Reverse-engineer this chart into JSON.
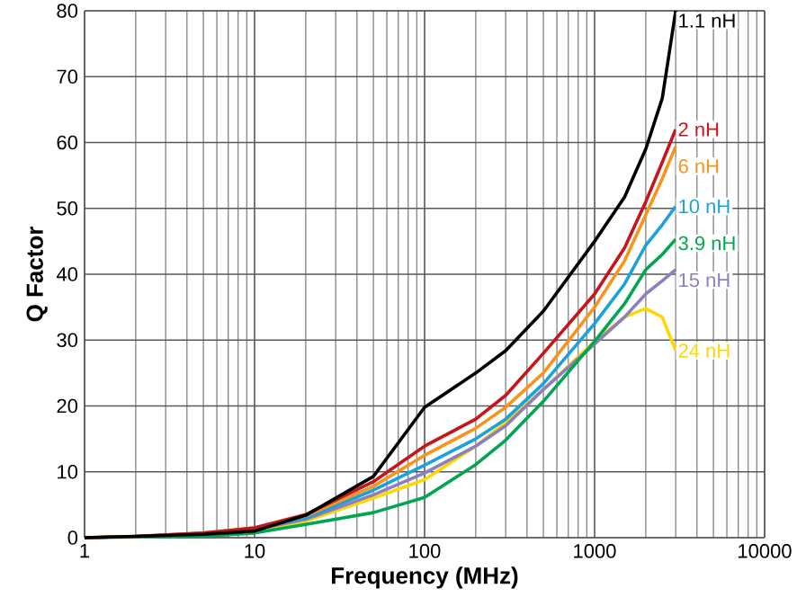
{
  "chart_data": {
    "type": "line",
    "xlabel": "Frequency (MHz)",
    "ylabel": "Q Factor",
    "log": "x",
    "grid": true,
    "xlim": [
      1,
      10000
    ],
    "xticks": [
      1,
      10,
      100,
      1000,
      10000
    ],
    "ylim": [
      0,
      80
    ],
    "yticks": [
      0,
      10,
      20,
      30,
      40,
      50,
      60,
      70,
      80
    ],
    "x": [
      1,
      2,
      5,
      10,
      20,
      50,
      100,
      200,
      300,
      500,
      1000,
      1500,
      2000,
      2500,
      3000
    ],
    "series": [
      {
        "name": "1.1 nH",
        "color": "#000000",
        "values": [
          0,
          0.2,
          0.5,
          1,
          3.4,
          9.3,
          19.8,
          25,
          28.4,
          34.4,
          45,
          51.7,
          59,
          66.7,
          80
        ]
      },
      {
        "name": "2 nH",
        "color": "#c4161c",
        "values": [
          0,
          0.2,
          0.7,
          1.5,
          3.5,
          8.5,
          13.9,
          18,
          21.6,
          28,
          37,
          44,
          51,
          57,
          62
        ]
      },
      {
        "name": "6 nH",
        "color": "#f7941d",
        "values": [
          0,
          0.2,
          0.7,
          1.5,
          3.3,
          7.8,
          12.5,
          16.6,
          19.8,
          25,
          35,
          42,
          49,
          54.5,
          59.4
        ]
      },
      {
        "name": "10 nH",
        "color": "#1ba1dc",
        "values": [
          null,
          null,
          0.6,
          1.3,
          3.0,
          7.2,
          11,
          15,
          18,
          23.4,
          32.5,
          38.5,
          44.4,
          47.5,
          50.3
        ]
      },
      {
        "name": "3.9 nH",
        "color": "#00a651",
        "values": [
          0,
          0.1,
          0.2,
          0.7,
          2,
          3.8,
          6.1,
          11.1,
          14.8,
          20.7,
          29.8,
          35.5,
          40.7,
          43,
          45.3
        ]
      },
      {
        "name": "15 nH",
        "color": "#8c7fc0",
        "values": [
          0,
          0.2,
          0.6,
          1.2,
          2.8,
          6.5,
          9.8,
          13.9,
          17,
          22.5,
          29.4,
          33.5,
          37,
          39,
          40.7
        ]
      },
      {
        "name": "24 nH",
        "color": "#ffd700",
        "values": [
          null,
          null,
          0.3,
          0.9,
          2.5,
          6,
          8.8,
          13.9,
          17.5,
          22.5,
          29.8,
          33.5,
          34.8,
          33.5,
          28.4
        ]
      }
    ]
  }
}
